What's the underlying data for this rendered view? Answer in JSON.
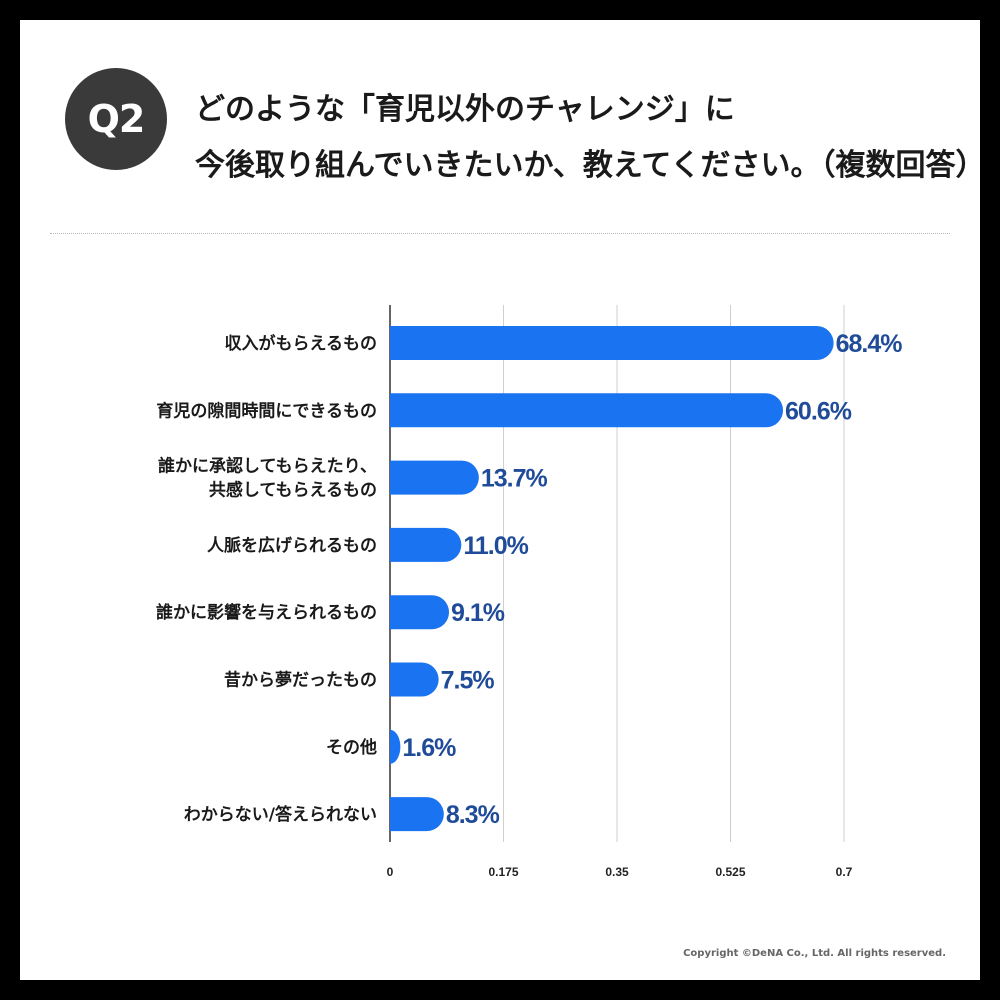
{
  "header": {
    "badge": "Q2",
    "title_line1": "どのような「育児以外のチャレンジ」に",
    "title_line2": "今後取り組んでいきたいか、教えてください。（複数回答）"
  },
  "footer": {
    "copyright": "Copyright ©DeNA Co., Ltd. All rights reserved."
  },
  "colors": {
    "bar": "#1a73f0",
    "value_label": "#1f4b99",
    "grid": "#cfcfcf",
    "axis": "#333333"
  },
  "chart_data": {
    "type": "bar",
    "orientation": "horizontal",
    "categories": [
      [
        "収入がもらえるもの"
      ],
      [
        "育児の隙間時間にできるもの"
      ],
      [
        "誰かに承認してもらえたり、",
        "共感してもらえるもの"
      ],
      [
        "人脈を広げられるもの"
      ],
      [
        "誰かに影響を与えられるもの"
      ],
      [
        "昔から夢だったもの"
      ],
      [
        "その他"
      ],
      [
        "わからない/答えられない"
      ]
    ],
    "values": [
      0.684,
      0.606,
      0.137,
      0.11,
      0.091,
      0.075,
      0.016,
      0.083
    ],
    "value_labels": [
      "68.4%",
      "60.6%",
      "13.7%",
      "11.0%",
      "9.1%",
      "7.5%",
      "1.6%",
      "8.3%"
    ],
    "xlim": [
      0,
      0.7
    ],
    "x_ticks": [
      0,
      0.175,
      0.35,
      0.525,
      0.7
    ],
    "x_tick_labels": [
      "0",
      "0.175",
      "0.35",
      "0.525",
      "0.7"
    ],
    "grid": true
  }
}
